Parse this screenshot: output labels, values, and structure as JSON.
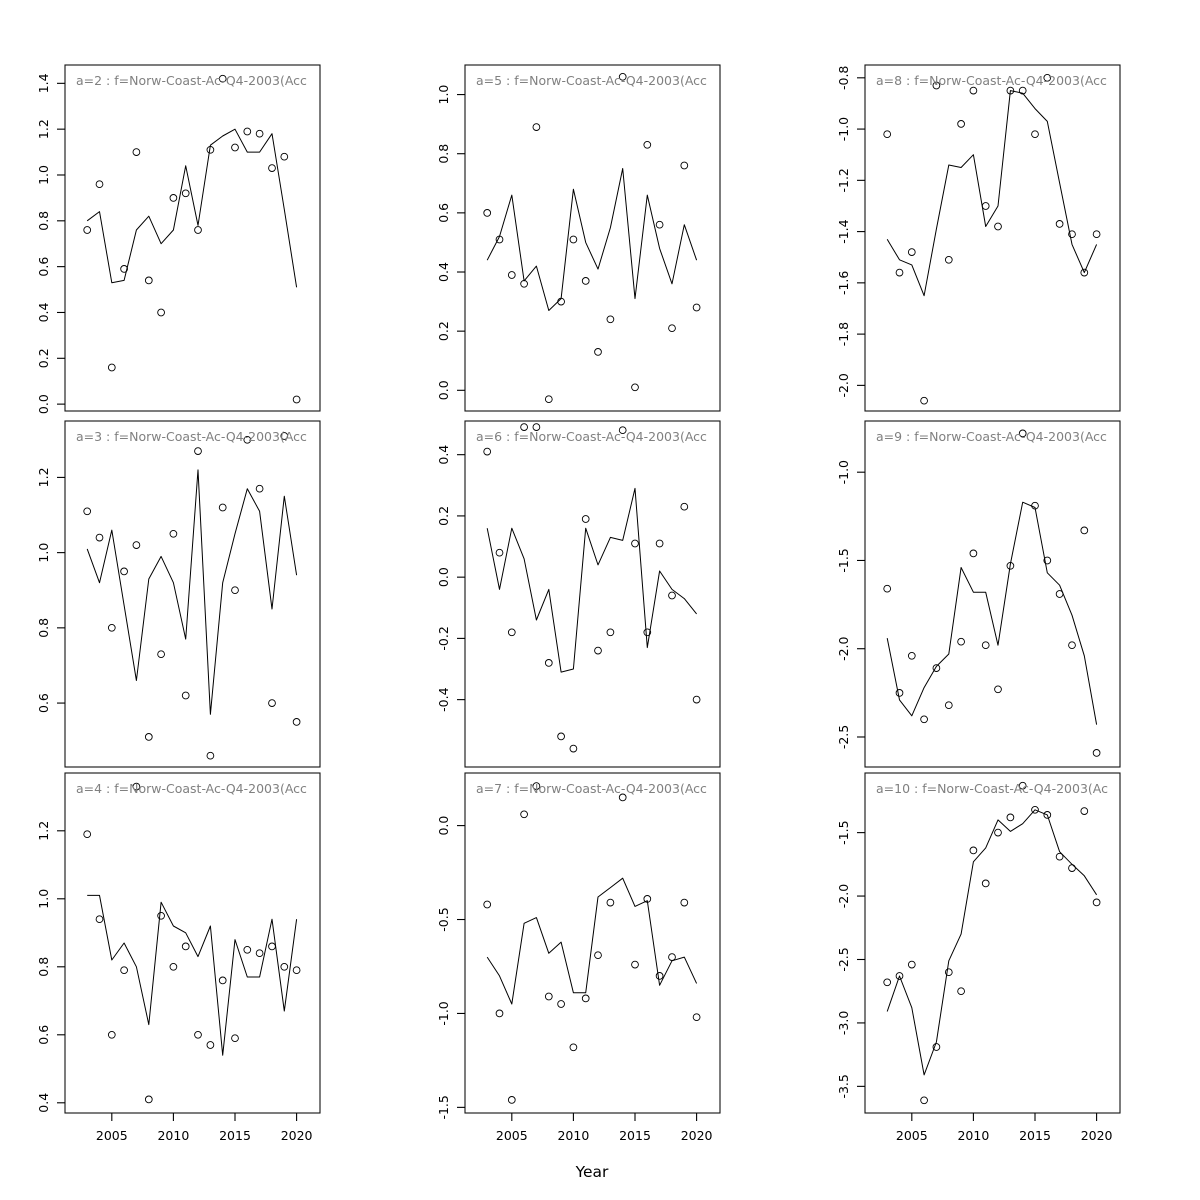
{
  "figure": {
    "xlabel": "Year",
    "x_ticks": [
      2005,
      2010,
      2015,
      2020
    ],
    "years": [
      2003,
      2004,
      2005,
      2006,
      2007,
      2008,
      2009,
      2010,
      2011,
      2012,
      2013,
      2014,
      2015,
      2016,
      2017,
      2018,
      2019,
      2020
    ],
    "colors": {
      "background": "#ffffff",
      "title_text": "#808080",
      "axis_text": "#000000",
      "box_stroke": "#111111",
      "data_stroke": "#000000"
    }
  },
  "chart_data": [
    {
      "panel_id": "a=2",
      "title": "a=2 : f=Norw-Coast-Ac-Q4-2003(Acc",
      "type": "scatter+line",
      "grid": {
        "row": 0,
        "col": 0
      },
      "xlim": [
        2001.2,
        2021.9
      ],
      "ylim": [
        -0.03,
        1.48
      ],
      "y_ticks": [
        0.0,
        0.2,
        0.4,
        0.6,
        0.8,
        1.0,
        1.2,
        1.4
      ],
      "points": [
        0.76,
        0.96,
        0.16,
        0.59,
        1.1,
        0.54,
        0.4,
        0.9,
        0.92,
        0.76,
        1.11,
        1.42,
        1.12,
        1.19,
        1.18,
        1.03,
        1.08,
        0.02
      ],
      "line": [
        0.8,
        0.84,
        0.53,
        0.54,
        0.76,
        0.82,
        0.7,
        0.76,
        1.04,
        0.78,
        1.13,
        1.17,
        1.2,
        1.1,
        1.1,
        1.18,
        0.85,
        0.51
      ]
    },
    {
      "panel_id": "a=5",
      "title": "a=5 : f=Norw-Coast-Ac-Q4-2003(Acc",
      "type": "scatter+line",
      "grid": {
        "row": 0,
        "col": 1
      },
      "xlim": [
        2001.2,
        2021.9
      ],
      "ylim": [
        -0.07,
        1.1
      ],
      "y_ticks": [
        0.0,
        0.2,
        0.4,
        0.6,
        0.8,
        1.0
      ],
      "points": [
        0.6,
        0.51,
        0.39,
        0.36,
        0.89,
        -0.03,
        0.3,
        0.51,
        0.37,
        0.13,
        0.24,
        1.06,
        0.01,
        0.83,
        0.56,
        0.21,
        0.76,
        0.28
      ],
      "line": [
        0.44,
        0.52,
        0.66,
        0.37,
        0.42,
        0.27,
        0.31,
        0.68,
        0.5,
        0.41,
        0.55,
        0.75,
        0.31,
        0.66,
        0.48,
        0.36,
        0.56,
        0.44
      ]
    },
    {
      "panel_id": "a=8",
      "title": "a=8 : f=Norw-Coast-Ac-Q4-2003(Acc",
      "type": "scatter+line",
      "grid": {
        "row": 0,
        "col": 2
      },
      "xlim": [
        2001.2,
        2021.9
      ],
      "ylim": [
        -2.1,
        -0.75
      ],
      "y_ticks": [
        -2.0,
        -1.8,
        -1.6,
        -1.4,
        -1.2,
        -1.0,
        -0.8
      ],
      "points": [
        -1.02,
        -1.56,
        -1.48,
        -2.06,
        -0.83,
        -1.51,
        -0.98,
        -0.85,
        -1.3,
        -1.38,
        -0.85,
        -0.85,
        -1.02,
        -0.8,
        -1.37,
        -1.41,
        -1.56,
        -1.41
      ],
      "line": [
        -1.43,
        -1.51,
        -1.53,
        -1.65,
        -1.39,
        -1.14,
        -1.15,
        -1.1,
        -1.38,
        -1.3,
        -0.85,
        -0.86,
        -0.92,
        -0.97,
        -1.21,
        -1.45,
        -1.56,
        -1.45
      ]
    },
    {
      "panel_id": "a=3",
      "title": "a=3 : f=Norw-Coast-Ac-Q4-2003(Acc",
      "type": "scatter+line",
      "grid": {
        "row": 1,
        "col": 0
      },
      "xlim": [
        2001.2,
        2021.9
      ],
      "ylim": [
        0.43,
        1.35
      ],
      "y_ticks": [
        0.6,
        0.8,
        1.0,
        1.2
      ],
      "points": [
        1.11,
        1.04,
        0.8,
        0.95,
        1.02,
        0.51,
        0.73,
        1.05,
        0.62,
        1.27,
        0.46,
        1.12,
        0.9,
        1.3,
        1.17,
        0.6,
        1.31,
        0.55
      ],
      "line": [
        1.01,
        0.92,
        1.06,
        0.86,
        0.66,
        0.93,
        0.99,
        0.92,
        0.77,
        1.22,
        0.57,
        0.92,
        1.05,
        1.17,
        1.11,
        0.85,
        1.15,
        0.94
      ]
    },
    {
      "panel_id": "a=6",
      "title": "a=6 : f=Norw-Coast-Ac-Q4-2003(Acc",
      "type": "scatter+line",
      "grid": {
        "row": 1,
        "col": 1
      },
      "xlim": [
        2001.2,
        2021.9
      ],
      "ylim": [
        -0.62,
        0.51
      ],
      "y_ticks": [
        -0.4,
        -0.2,
        0.0,
        0.2,
        0.4
      ],
      "points": [
        0.41,
        0.08,
        -0.18,
        0.49,
        0.49,
        -0.28,
        -0.52,
        -0.56,
        0.19,
        -0.24,
        -0.18,
        0.48,
        0.11,
        -0.18,
        0.11,
        -0.06,
        0.23,
        -0.4
      ],
      "line": [
        0.16,
        -0.04,
        0.16,
        0.06,
        -0.14,
        -0.04,
        -0.31,
        -0.3,
        0.16,
        0.04,
        0.13,
        0.12,
        0.29,
        -0.23,
        0.02,
        -0.04,
        -0.07,
        -0.12
      ]
    },
    {
      "panel_id": "a=9",
      "title": "a=9 : f=Norw-Coast-Ac-Q4-2003(Acc",
      "type": "scatter+line",
      "grid": {
        "row": 1,
        "col": 2
      },
      "xlim": [
        2001.2,
        2021.9
      ],
      "ylim": [
        -2.67,
        -0.71
      ],
      "y_ticks": [
        -2.5,
        -2.0,
        -1.5,
        -1.0
      ],
      "points": [
        -1.66,
        -2.25,
        -2.04,
        -2.4,
        -2.11,
        -2.32,
        -1.96,
        -1.46,
        -1.98,
        -2.23,
        -1.53,
        -0.78,
        -1.19,
        -1.5,
        -1.69,
        -1.98,
        -1.33,
        -2.59
      ],
      "line": [
        -1.94,
        -2.29,
        -2.38,
        -2.22,
        -2.1,
        -2.03,
        -1.54,
        -1.68,
        -1.68,
        -1.98,
        -1.52,
        -1.17,
        -1.2,
        -1.57,
        -1.64,
        -1.81,
        -2.04,
        -2.43
      ]
    },
    {
      "panel_id": "a=4",
      "title": "a=4 : f=Norw-Coast-Ac-Q4-2003(Acc",
      "type": "scatter+line",
      "grid": {
        "row": 2,
        "col": 0
      },
      "xlim": [
        2001.2,
        2021.9
      ],
      "ylim": [
        0.37,
        1.37
      ],
      "y_ticks": [
        0.4,
        0.6,
        0.8,
        1.0,
        1.2
      ],
      "points": [
        1.19,
        0.94,
        0.6,
        0.79,
        1.33,
        0.41,
        0.95,
        0.8,
        0.86,
        0.6,
        0.57,
        0.76,
        0.59,
        0.85,
        0.84,
        0.86,
        0.8,
        0.79
      ],
      "line": [
        1.01,
        1.01,
        0.82,
        0.87,
        0.8,
        0.63,
        0.99,
        0.92,
        0.9,
        0.83,
        0.92,
        0.54,
        0.88,
        0.77,
        0.77,
        0.94,
        0.67,
        0.94
      ]
    },
    {
      "panel_id": "a=7",
      "title": "a=7 : f=Norw-Coast-Ac-Q4-2003(Acc",
      "type": "scatter+line",
      "grid": {
        "row": 2,
        "col": 1
      },
      "xlim": [
        2001.2,
        2021.9
      ],
      "ylim": [
        -1.53,
        0.28
      ],
      "y_ticks": [
        -1.5,
        -1.0,
        -0.5,
        0.0
      ],
      "points": [
        -0.42,
        -1.0,
        -1.46,
        0.06,
        0.21,
        -0.91,
        -0.95,
        -1.18,
        -0.92,
        -0.69,
        -0.41,
        0.15,
        -0.74,
        -0.39,
        -0.8,
        -0.7,
        -0.41,
        -1.02
      ],
      "line": [
        -0.7,
        -0.8,
        -0.95,
        -0.52,
        -0.49,
        -0.68,
        -0.62,
        -0.89,
        -0.89,
        -0.38,
        -0.33,
        -0.28,
        -0.43,
        -0.4,
        -0.85,
        -0.72,
        -0.7,
        -0.84
      ]
    },
    {
      "panel_id": "a=10",
      "title": "a=10 : f=Norw-Coast-Ac-Q4-2003(Ac",
      "type": "scatter+line",
      "grid": {
        "row": 2,
        "col": 2
      },
      "xlim": [
        2001.2,
        2021.9
      ],
      "ylim": [
        -3.71,
        -1.03
      ],
      "y_ticks": [
        -3.5,
        -3.0,
        -2.5,
        -2.0,
        -1.5
      ],
      "points": [
        -2.68,
        -2.63,
        -2.54,
        -3.61,
        -3.19,
        -2.6,
        -2.75,
        -1.64,
        -1.9,
        -1.5,
        -1.38,
        -1.13,
        -1.32,
        -1.36,
        -1.69,
        -1.78,
        -1.33,
        -2.05
      ],
      "line": [
        -2.91,
        -2.63,
        -2.88,
        -3.41,
        -3.15,
        -2.51,
        -2.3,
        -1.73,
        -1.62,
        -1.4,
        -1.49,
        -1.43,
        -1.32,
        -1.36,
        -1.65,
        -1.75,
        -1.84,
        -1.99
      ]
    }
  ]
}
